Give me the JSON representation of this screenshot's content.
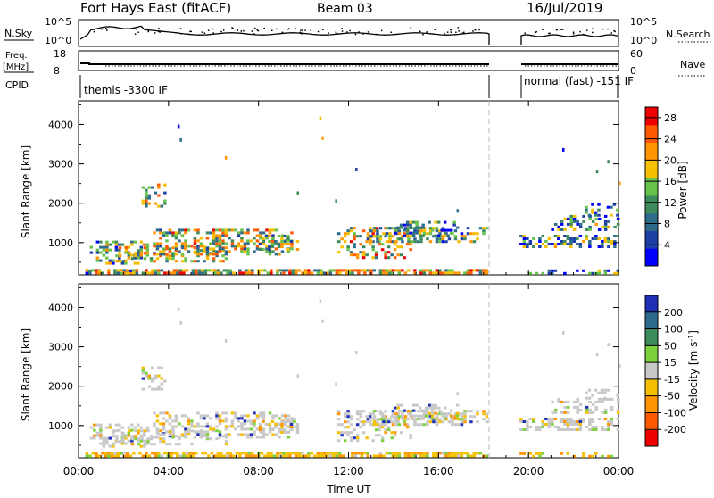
{
  "header": {
    "station": "Fort Hays East (fitACF)",
    "beam": "Beam 03",
    "date": "16/Jul/2019"
  },
  "status": {
    "nsky_label": "N.Sky",
    "nsky_ticks": [
      "10^5",
      "10^0"
    ],
    "nsearch_label": "N.Search",
    "nsearch_ticks": [
      "10^5",
      "10^0"
    ],
    "freq_label_1": "Freq.",
    "freq_label_2": "[MHz]",
    "freq_ticks": [
      "18",
      "8"
    ],
    "nave_label": "Nave",
    "nave_ticks": [
      "60",
      "0"
    ],
    "cpid_label": "CPID",
    "cpid_segments": [
      {
        "name": "themis -3300 IF",
        "start_hour": 0,
        "end_hour": 18.2
      },
      {
        "name": "normal (fast) -151 IF",
        "start_hour": 19.6,
        "end_hour": 24
      }
    ]
  },
  "chart_data": [
    {
      "type": "heatmap",
      "name": "power-panel",
      "ylabel": "Slant Range [km]",
      "xlabel": "",
      "x_range_hours": [
        0,
        24
      ],
      "ylim": [
        180,
        4600
      ],
      "y_ticks": [
        "1000",
        "2000",
        "3000",
        "4000"
      ],
      "colorbar": {
        "label": "Power [dB]",
        "ticks": [
          "4",
          "8",
          "12",
          "16",
          "20",
          "24",
          "28"
        ],
        "range": [
          0,
          30
        ],
        "colors": [
          "#0000ff",
          "#1e3fa6",
          "#2e6b8a",
          "#3d8a5a",
          "#66c24a",
          "#f5c000",
          "#ff9500",
          "#ff5a00",
          "#ee0000"
        ]
      },
      "data_gap_hours": [
        18.2,
        19.6
      ]
    },
    {
      "type": "heatmap",
      "name": "velocity-panel",
      "ylabel": "Slant Range [km]",
      "xlabel": "Time UT",
      "x_range_hours": [
        0,
        24
      ],
      "x_ticks": [
        "00:00",
        "04:00",
        "08:00",
        "12:00",
        "16:00",
        "20:00",
        "00:00"
      ],
      "ylim": [
        180,
        4600
      ],
      "y_ticks": [
        "1000",
        "2000",
        "3000",
        "4000"
      ],
      "colorbar": {
        "label": "Velocity [m s-1]",
        "ticks": [
          "200",
          "100",
          "50",
          "15",
          "-15",
          "-50",
          "-100",
          "-200"
        ],
        "colors": [
          "#1e2fb4",
          "#2e6b8a",
          "#3d8a5a",
          "#7dd23c",
          "#c8c8c8",
          "#f5c000",
          "#ff9500",
          "#ff5a00",
          "#ee0000"
        ]
      },
      "data_gap_hours": [
        18.2,
        19.6
      ]
    }
  ]
}
